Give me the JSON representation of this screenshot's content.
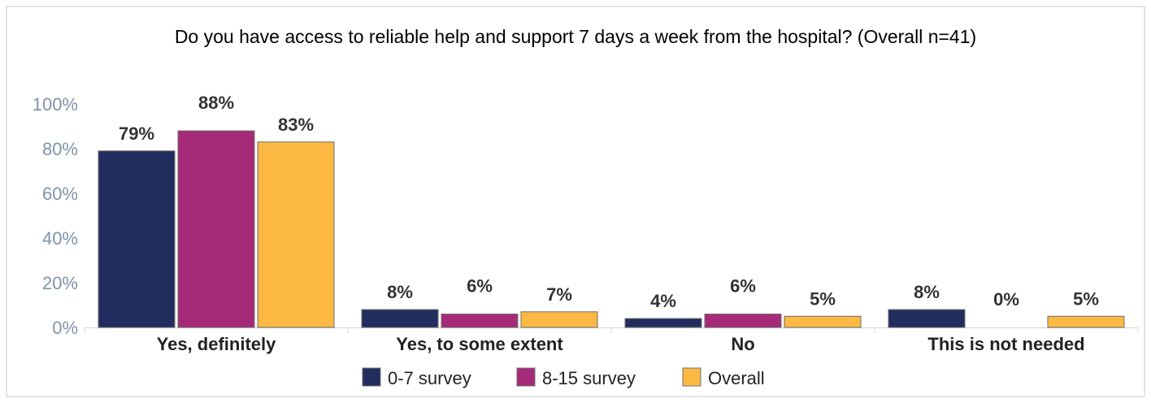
{
  "chart_data": {
    "type": "bar",
    "title": "Do you have access to reliable help and support 7 days a week from the hospital? (Overall n=41)",
    "categories": [
      "Yes, definitely",
      "Yes, to some extent",
      "No",
      "This is not needed"
    ],
    "series": [
      {
        "name": "0-7 survey",
        "values": [
          79,
          8,
          4,
          8
        ],
        "labels": [
          "79%",
          "8%",
          "4%",
          "8%"
        ],
        "color": "#212d5e"
      },
      {
        "name": "8-15 survey",
        "values": [
          88,
          6,
          6,
          0
        ],
        "labels": [
          "88%",
          "6%",
          "6%",
          "0%"
        ],
        "color": "#a62a7a"
      },
      {
        "name": "Overall",
        "values": [
          83,
          7,
          5,
          5
        ],
        "labels": [
          "83%",
          "7%",
          "5%",
          "5%"
        ],
        "color": "#fbb843"
      }
    ],
    "ylim": [
      0,
      100
    ],
    "yticks": [
      0,
      20,
      40,
      60,
      80,
      100
    ],
    "ytick_labels": [
      "0%",
      "20%",
      "40%",
      "60%",
      "80%",
      "100%"
    ],
    "xlabel": "",
    "ylabel": "",
    "grid": false,
    "legend_position": "bottom"
  }
}
